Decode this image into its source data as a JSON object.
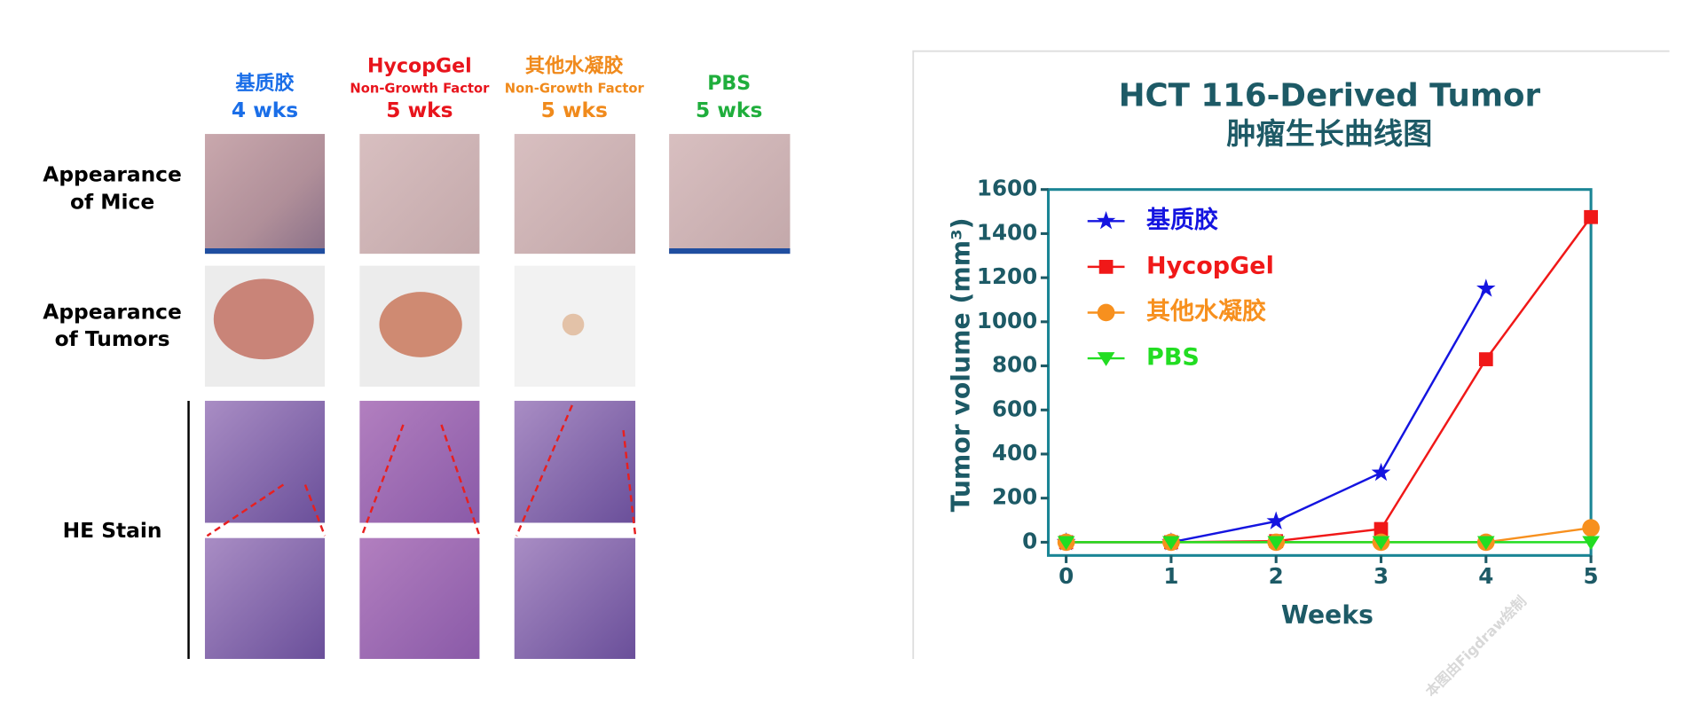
{
  "panel": {
    "columns": [
      {
        "name": "基质胶",
        "weeks": "4 wks",
        "color": "#1a6ee8"
      },
      {
        "name": "HycopGel",
        "sub": "Non-Growth Factor",
        "weeks": "5 wks",
        "color": "#e8141c"
      },
      {
        "name": "其他水凝胶",
        "sub": "Non-Growth Factor",
        "weeks": "5 wks",
        "color": "#f08a1c"
      },
      {
        "name": "PBS",
        "weeks": "5 wks",
        "color": "#1fae3c"
      }
    ],
    "rows": [
      "Appearance of Mice",
      "Appearance of Tumors",
      "HE Stain"
    ],
    "watermark": "本图由Figdraw绘制"
  },
  "chart_data": {
    "type": "line",
    "title": "HCT 116-Derived Tumor",
    "subtitle": "肿瘤生长曲线图",
    "x_label": "Weeks",
    "y_label": "Tumor volume (mm³)",
    "x": [
      0,
      1,
      2,
      3,
      4,
      5
    ],
    "series": [
      {
        "name": "基质胶",
        "color": "#1414e0",
        "marker": "star",
        "values": [
          0,
          0,
          95,
          315,
          1150,
          null
        ]
      },
      {
        "name": "HycopGel",
        "color": "#f01818",
        "marker": "square",
        "values": [
          0,
          0,
          5,
          60,
          830,
          1475
        ]
      },
      {
        "name": "其他水凝胶",
        "color": "#f7901e",
        "marker": "circle",
        "values": [
          0,
          0,
          0,
          0,
          0,
          65
        ]
      },
      {
        "name": "PBS",
        "color": "#22dd22",
        "marker": "triangle-down",
        "values": [
          0,
          0,
          0,
          0,
          0,
          0
        ]
      }
    ],
    "xlim": [
      -0.17,
      5
    ],
    "xticks": [
      0,
      1,
      2,
      3,
      4,
      5
    ],
    "ylim": [
      -60,
      1600
    ],
    "yticks": [
      0,
      200,
      400,
      600,
      800,
      1000,
      1200,
      1400,
      1600
    ],
    "legend": "upper-left"
  }
}
